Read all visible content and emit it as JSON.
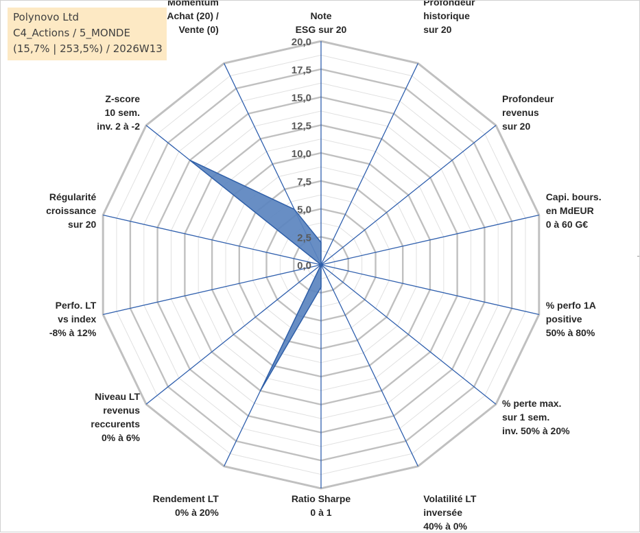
{
  "info_box": {
    "line1": "Polynovo Ltd",
    "line2": "C4_Actions / 5_MONDE",
    "line3": "(15,7% | 253,5%) / 2026W13"
  },
  "colors": {
    "grid": "#c0c0c0",
    "spokes": "#2f5fad",
    "fill": "#5b84bf",
    "stroke": "#2f5fa8",
    "info_bg": "#fde9c4"
  },
  "chart_data": {
    "type": "radar",
    "r_range": [
      0,
      20
    ],
    "r_tick_labels": [
      "0,0",
      "2,5",
      "5,0",
      "7,5",
      "10,0",
      "12,5",
      "15,0",
      "17,5",
      "20,0"
    ],
    "minor_grid_step": 1.25,
    "grid": true,
    "categories": [
      [
        "Note",
        "ESG sur 20"
      ],
      [
        "Profondeur",
        "historique",
        "sur 20"
      ],
      [
        "Profondeur",
        "revenus",
        "sur 20"
      ],
      [
        "Capi. bours.",
        "en MdEUR",
        "0 à 60 G€"
      ],
      [
        "% perfo 1A",
        "positive",
        "50% à 80%"
      ],
      [
        "% perte max.",
        "sur 1 sem.",
        "inv. 50% à 20%"
      ],
      [
        "Volatilité LT",
        "inversée",
        "40% à 0%"
      ],
      [
        "Ratio Sharpe",
        "0 à 1"
      ],
      [
        "Rendement LT",
        "0% à 20%"
      ],
      [
        "Niveau LT",
        "revenus",
        "reccurents",
        "0% à 6%"
      ],
      [
        "Perfo. LT",
        "vs index",
        "-8% à 12%"
      ],
      [
        "Régularité",
        "croissance",
        "sur 20"
      ],
      [
        "Z-score",
        "10 sem.",
        "inv. 2 à -2"
      ],
      [
        "Momentum",
        "Achat (20) /",
        "Vente (0)"
      ]
    ],
    "values": [
      2.0,
      0.0,
      0.0,
      0.0,
      0.0,
      0.0,
      0.0,
      2.0,
      12.5,
      0.0,
      0.0,
      0.0,
      15.0,
      5.5
    ]
  }
}
